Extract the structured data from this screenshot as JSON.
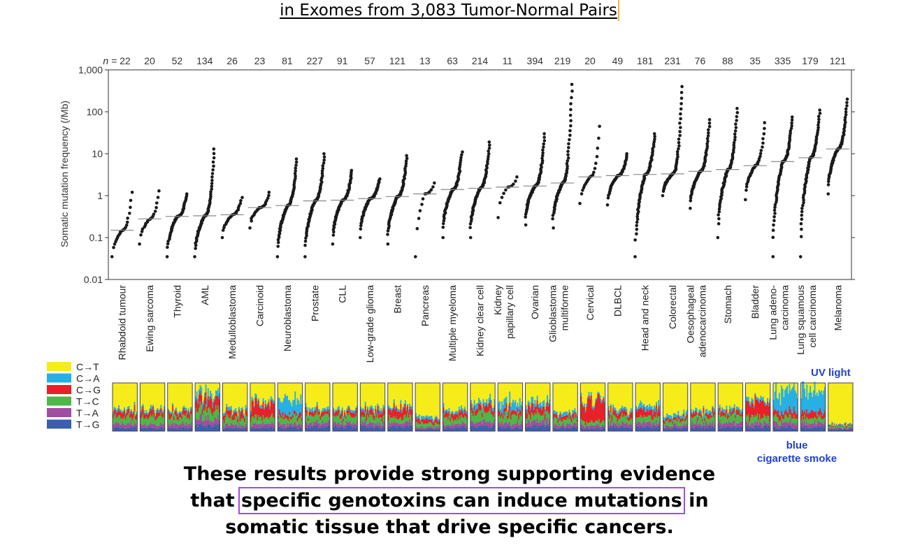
{
  "slide": {
    "title": "in Exomes from 3,083 Tumor-Normal Pairs",
    "annotation_uv": "UV light",
    "annotation_smoke_1": "blue",
    "annotation_smoke_2": "cigarette smoke",
    "conclusion": {
      "line1": "These results provide strong supporting evidence",
      "line2_pre": "that ",
      "line2_highlight": "specific genotoxins can induce mutations",
      "line2_post": " in",
      "line3": "somatic tissue that drive specific cancers."
    },
    "highlight_color": "#a54be0"
  },
  "chart_data": {
    "type": "scatter",
    "ylabel": "Somatic mutation frequency (/Mb)",
    "y_scale": "log",
    "ylim": [
      0.01,
      1000
    ],
    "yticks": [
      0.01,
      0.1,
      1,
      10,
      100,
      1000
    ],
    "ytick_labels": [
      "0.01",
      "0.1",
      "1",
      "10",
      "100",
      "1,000"
    ],
    "n_prefix": "n = ",
    "categories": [
      {
        "name": "Rhabdoid tumour",
        "n": "22",
        "median": 0.15,
        "min": 0.035,
        "max": 1.2
      },
      {
        "name": "Ewing sarcoma",
        "n": "20",
        "median": 0.28,
        "min": 0.07,
        "max": 1.3
      },
      {
        "name": "Thyroid",
        "n": "52",
        "median": 0.32,
        "min": 0.035,
        "max": 1.1
      },
      {
        "name": "AML",
        "n": "134",
        "median": 0.33,
        "min": 0.035,
        "max": 13
      },
      {
        "name": "Medulloblastoma",
        "n": "26",
        "median": 0.35,
        "min": 0.1,
        "max": 0.9
      },
      {
        "name": "Carcinoid",
        "n": "23",
        "median": 0.52,
        "min": 0.17,
        "max": 1.2
      },
      {
        "name": "Neuroblastoma",
        "n": "81",
        "median": 0.58,
        "min": 0.035,
        "max": 7.5
      },
      {
        "name": "Prostate",
        "n": "227",
        "median": 0.75,
        "min": 0.035,
        "max": 10
      },
      {
        "name": "CLL",
        "n": "91",
        "median": 0.78,
        "min": 0.07,
        "max": 4
      },
      {
        "name": "Low-grade glioma",
        "n": "57",
        "median": 0.85,
        "min": 0.1,
        "max": 2.5
      },
      {
        "name": "Breast",
        "n": "121",
        "median": 0.95,
        "min": 0.07,
        "max": 9
      },
      {
        "name": "Pancreas",
        "n": "13",
        "median": 1.1,
        "min": 0.035,
        "max": 2
      },
      {
        "name": "Multiple myeloma",
        "n": "63",
        "median": 1.4,
        "min": 0.1,
        "max": 11
      },
      {
        "name": "Kidney clear cell",
        "n": "214",
        "median": 1.5,
        "min": 0.1,
        "max": 19
      },
      {
        "name": "Kidney papillary cell",
        "n": "11",
        "median": 1.6,
        "min": 0.3,
        "max": 2.8
      },
      {
        "name": "Ovarian",
        "n": "394",
        "median": 1.7,
        "min": 0.2,
        "max": 30
      },
      {
        "name": "Glioblastoma multiforme",
        "n": "219",
        "median": 2.0,
        "min": 0.17,
        "max": 450
      },
      {
        "name": "Cervical",
        "n": "20",
        "median": 2.8,
        "min": 0.65,
        "max": 45
      },
      {
        "name": "DLBCL",
        "n": "49",
        "median": 3.0,
        "min": 0.6,
        "max": 10
      },
      {
        "name": "Head and neck",
        "n": "181",
        "median": 3.2,
        "min": 0.035,
        "max": 30
      },
      {
        "name": "Colorectal",
        "n": "231",
        "median": 3.3,
        "min": 1.0,
        "max": 400
      },
      {
        "name": "Oesophageal adenocarcinoma",
        "n": "76",
        "median": 3.8,
        "min": 0.5,
        "max": 65
      },
      {
        "name": "Stomach",
        "n": "88",
        "median": 4.2,
        "min": 0.1,
        "max": 120
      },
      {
        "name": "Bladder",
        "n": "35",
        "median": 5.2,
        "min": 0.8,
        "max": 55
      },
      {
        "name": "Lung adenocarcinoma",
        "n": "335",
        "median": 6.5,
        "min": 0.035,
        "max": 75
      },
      {
        "name": "Lung squamous cell carcinoma",
        "n": "179",
        "median": 8.0,
        "min": 0.035,
        "max": 110
      },
      {
        "name": "Melanoma",
        "n": "121",
        "median": 13,
        "min": 1.1,
        "max": 200
      }
    ],
    "spectrum_legend": [
      {
        "label": "C→T",
        "color": "#f5ec1a"
      },
      {
        "label": "C→A",
        "color": "#26b0e6"
      },
      {
        "label": "C→G",
        "color": "#e8202a"
      },
      {
        "label": "T→C",
        "color": "#4cb848"
      },
      {
        "label": "T→A",
        "color": "#a04fa0"
      },
      {
        "label": "T→G",
        "color": "#3a5fb0"
      }
    ],
    "spectrum_fractions": [
      [
        0.55,
        0.05,
        0.1,
        0.15,
        0.08,
        0.07
      ],
      [
        0.55,
        0.05,
        0.12,
        0.15,
        0.07,
        0.06
      ],
      [
        0.55,
        0.05,
        0.1,
        0.15,
        0.08,
        0.07
      ],
      [
        0.2,
        0.12,
        0.2,
        0.2,
        0.15,
        0.13
      ],
      [
        0.55,
        0.06,
        0.12,
        0.14,
        0.07,
        0.06
      ],
      [
        0.4,
        0.06,
        0.25,
        0.14,
        0.08,
        0.07
      ],
      [
        0.35,
        0.3,
        0.08,
        0.13,
        0.07,
        0.07
      ],
      [
        0.55,
        0.06,
        0.08,
        0.14,
        0.08,
        0.09
      ],
      [
        0.55,
        0.06,
        0.08,
        0.14,
        0.08,
        0.09
      ],
      [
        0.5,
        0.06,
        0.12,
        0.15,
        0.08,
        0.09
      ],
      [
        0.45,
        0.06,
        0.2,
        0.12,
        0.08,
        0.09
      ],
      [
        0.7,
        0.06,
        0.08,
        0.08,
        0.04,
        0.04
      ],
      [
        0.55,
        0.06,
        0.1,
        0.14,
        0.07,
        0.08
      ],
      [
        0.38,
        0.1,
        0.12,
        0.2,
        0.1,
        0.1
      ],
      [
        0.38,
        0.16,
        0.12,
        0.16,
        0.1,
        0.08
      ],
      [
        0.4,
        0.1,
        0.15,
        0.15,
        0.1,
        0.1
      ],
      [
        0.6,
        0.06,
        0.08,
        0.12,
        0.07,
        0.07
      ],
      [
        0.35,
        0.05,
        0.4,
        0.08,
        0.06,
        0.06
      ],
      [
        0.55,
        0.06,
        0.1,
        0.13,
        0.08,
        0.08
      ],
      [
        0.45,
        0.1,
        0.15,
        0.12,
        0.09,
        0.09
      ],
      [
        0.65,
        0.07,
        0.06,
        0.1,
        0.06,
        0.06
      ],
      [
        0.55,
        0.07,
        0.08,
        0.14,
        0.08,
        0.08
      ],
      [
        0.55,
        0.06,
        0.08,
        0.13,
        0.09,
        0.09
      ],
      [
        0.35,
        0.06,
        0.3,
        0.12,
        0.08,
        0.09
      ],
      [
        0.18,
        0.4,
        0.12,
        0.12,
        0.1,
        0.08
      ],
      [
        0.15,
        0.45,
        0.12,
        0.11,
        0.09,
        0.08
      ],
      [
        0.85,
        0.02,
        0.02,
        0.04,
        0.03,
        0.04
      ]
    ]
  }
}
